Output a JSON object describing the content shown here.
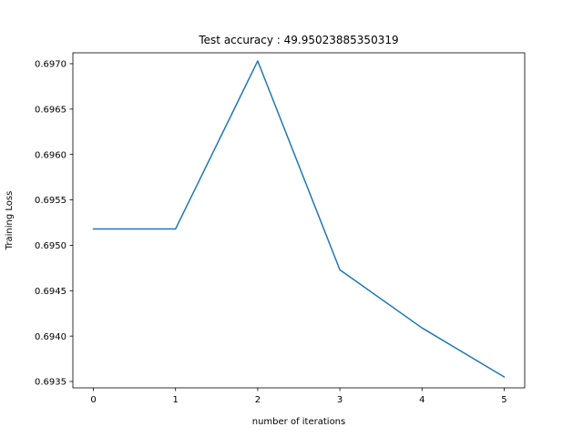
{
  "chart_data": {
    "type": "line",
    "title": "Test accuracy : 49.95023885350319",
    "xlabel": "number of iterations",
    "ylabel": "Training Loss",
    "x": [
      0,
      1,
      2,
      3,
      4,
      5
    ],
    "series": [
      {
        "values": [
          0.69518,
          0.69518,
          0.69703,
          0.69473,
          0.69409,
          0.69355
        ],
        "color": "#1f77b4"
      }
    ],
    "xlim": [
      -0.25,
      5.25
    ],
    "ylim": [
      0.69343,
      0.69712
    ],
    "xticks": [
      0,
      1,
      2,
      3,
      4,
      5
    ],
    "xtick_labels": [
      "0",
      "1",
      "2",
      "3",
      "4",
      "5"
    ],
    "yticks": [
      0.6935,
      0.694,
      0.6945,
      0.695,
      0.6955,
      0.696,
      0.6965,
      0.697
    ],
    "ytick_labels": [
      "0.6935",
      "0.6940",
      "0.6945",
      "0.6950",
      "0.6955",
      "0.6960",
      "0.6965",
      "0.6970"
    ],
    "grid": false,
    "legend": "none"
  }
}
